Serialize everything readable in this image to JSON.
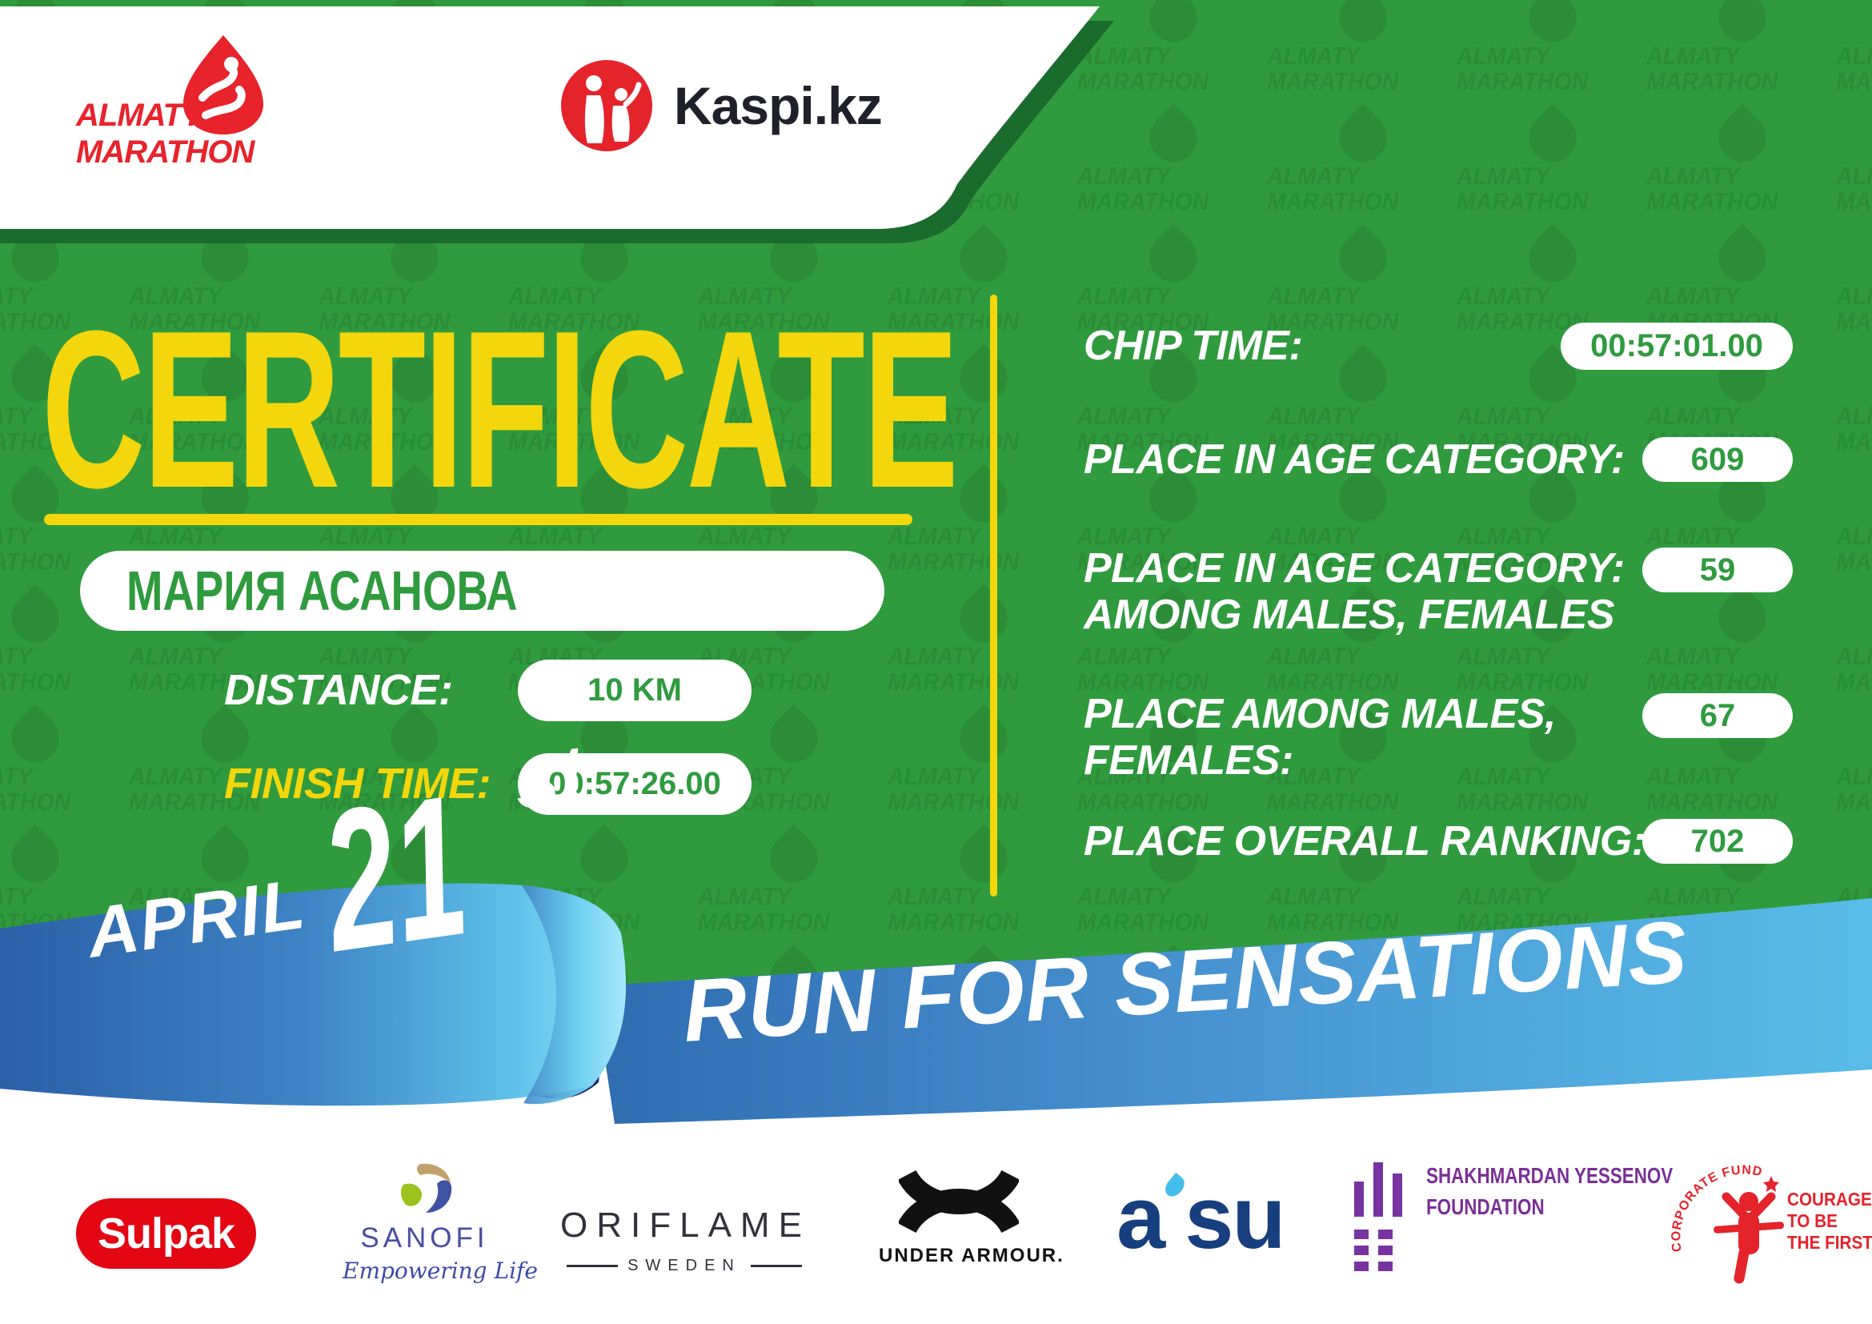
{
  "watermark": {
    "line1": "ALMATY",
    "line2": "MARATHON"
  },
  "header": {
    "almaty": {
      "line1": "ALMATY",
      "line2": "MARATHON"
    },
    "kaspi": {
      "text": "Kaspi.kz"
    }
  },
  "certificate": {
    "title": "CERTIFICATE",
    "runner_name": "МАРИЯ АСАНОВА",
    "distance_label": "DISTANCE:",
    "distance_value": "10 KM",
    "finish_label": "FINISH TIME:",
    "finish_value": "00:57:26.00"
  },
  "results": {
    "chip": {
      "l1": "CHIP TIME:",
      "value": "00:57:01.00"
    },
    "age": {
      "l1": "PLACE IN AGE CATEGORY:",
      "value": "609"
    },
    "age_gender": {
      "l1": "PLACE IN AGE CATEGORY:",
      "l2": "AMONG MALES, FEMALES",
      "value": "59"
    },
    "gender": {
      "l1": "PLACE AMONG MALES,",
      "l2": "FEMALES:",
      "value": "67"
    },
    "overall": {
      "l1": "PLACE OVERALL RANKING:",
      "value": "702"
    }
  },
  "ribbon": {
    "date_month": "APRIL",
    "date_day": "21",
    "date_suffix": "st",
    "slogan": "RUN FOR SENSATIONS"
  },
  "sponsors": {
    "sulpak": "Sulpak",
    "sanofi": {
      "name": "SANOFI",
      "tagline": "Empowering Life"
    },
    "oriflame": {
      "name": "ORIFLAME",
      "sub": "SWEDEN"
    },
    "under_armour": "UNDER ARMOUR.",
    "asu": {
      "a": "a",
      "su": "su"
    },
    "yessenov": {
      "l1": "SHAKHMARDAN YESSENOV",
      "l2": "FOUNDATION"
    },
    "courage": {
      "arc": "CORPORATE FUND",
      "l1": "COURAGE",
      "l2": "TO BE",
      "l3": "THE FIRST!"
    }
  },
  "colors": {
    "green": "#2F9B3E",
    "dark_green": "#1A6B2E",
    "yellow": "#F3D60B",
    "red": "#E8232B",
    "ribbon_blue": "#3E85C6",
    "ribbon_cyan": "#5FC0EA"
  }
}
